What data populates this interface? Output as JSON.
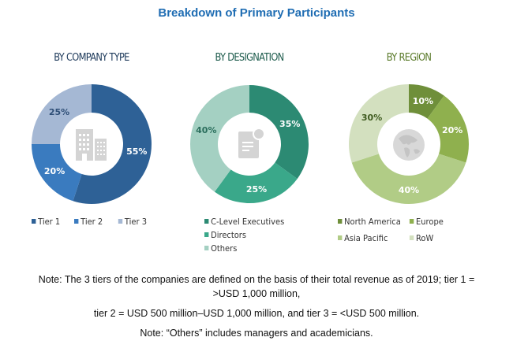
{
  "title": "Breakdown of Primary Participants",
  "chart_data": [
    {
      "type": "pie",
      "title": "BY COMPANY TYPE",
      "categories": [
        "Tier 1",
        "Tier 2",
        "Tier 3"
      ],
      "values": [
        55,
        20,
        25
      ],
      "labels": [
        "55%",
        "20%",
        "25%"
      ],
      "colors": [
        "#2e6196",
        "#3a7bbf",
        "#a5b8d4"
      ],
      "label_colors": [
        "#ffffff",
        "#ffffff",
        "#2e4e76"
      ],
      "center_icon": "building-icon",
      "legend": [
        "Tier 1",
        "Tier 2",
        "Tier 3"
      ]
    },
    {
      "type": "pie",
      "title": "BY DESIGNATION",
      "categories": [
        "C-Level Executives",
        "Directors",
        "Others"
      ],
      "values": [
        35,
        25,
        40
      ],
      "labels": [
        "35%",
        "25%",
        "40%"
      ],
      "colors": [
        "#2c8a73",
        "#3aa88a",
        "#a4d0c2"
      ],
      "label_colors": [
        "#ffffff",
        "#ffffff",
        "#2a6e5c"
      ],
      "center_icon": "document-icon",
      "legend": [
        "C-Level Executives",
        "Directors",
        "Others"
      ]
    },
    {
      "type": "pie",
      "title": "BY REGION",
      "categories": [
        "North America",
        "Europe",
        "Asia Pacific",
        "RoW"
      ],
      "values": [
        10,
        20,
        40,
        30
      ],
      "labels": [
        "10%",
        "20%",
        "40%",
        "30%"
      ],
      "colors": [
        "#6f8f3a",
        "#8fb04e",
        "#b1cc86",
        "#d3e0bf"
      ],
      "label_colors": [
        "#ffffff",
        "#ffffff",
        "#ffffff",
        "#3e5a1e"
      ],
      "center_icon": "globe-icon",
      "legend": [
        "North America",
        "Europe",
        "Asia Pacific",
        "RoW"
      ]
    }
  ],
  "subtitle_colors": [
    "#1f3b5c",
    "#1e5c4d",
    "#5a7a2a"
  ],
  "notes": [
    "Note: The 3 tiers of the companies are defined on the basis of their total revenue as of 2019; tier 1 =",
    ">USD 1,000 million,",
    "tier 2 = USD 500 million–USD 1,000 million, and tier 3 = <USD 500 million.",
    "Note: “Others” includes managers and academicians."
  ]
}
